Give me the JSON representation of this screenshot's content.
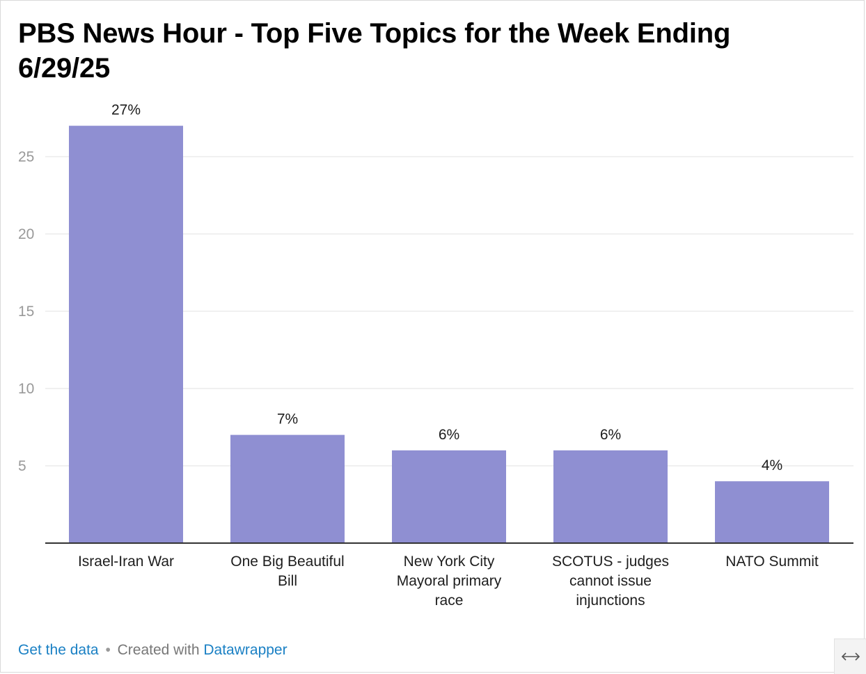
{
  "title": "PBS News Hour - Top Five Topics for the Week Ending 6/29/25",
  "footer": {
    "get_data_label": "Get the data",
    "separator": "•",
    "created_with_label": "Created with",
    "tool_label": "Datawrapper"
  },
  "resize_icon": "horizontal-resize-arrows-icon",
  "colors": {
    "bar": "#8f8fd2",
    "gridline": "#e6e6e6",
    "axis": "#333333",
    "tick_label": "#999999",
    "link": "#1a80c4"
  },
  "chart_data": {
    "type": "bar",
    "title": "PBS News Hour - Top Five Topics for the Week Ending 6/29/25",
    "xlabel": "",
    "ylabel": "",
    "ylim": [
      0,
      28
    ],
    "yticks": [
      5,
      10,
      15,
      20,
      25
    ],
    "grid": true,
    "categories": [
      [
        "Israel-Iran War"
      ],
      [
        "One Big Beautiful",
        "Bill"
      ],
      [
        "New York City",
        "Mayoral primary",
        "race"
      ],
      [
        "SCOTUS - judges",
        "cannot issue",
        "injunctions"
      ],
      [
        "NATO Summit"
      ]
    ],
    "values": [
      27,
      7,
      6,
      6,
      4
    ],
    "data_labels": [
      "27%",
      "7%",
      "6%",
      "6%",
      "4%"
    ]
  }
}
